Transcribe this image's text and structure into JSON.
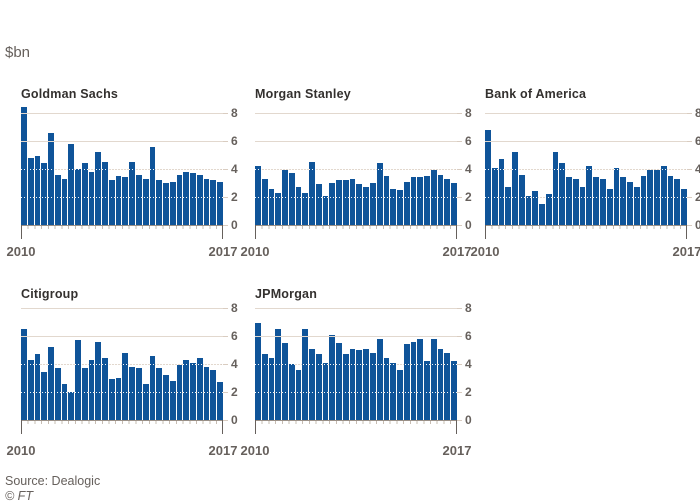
{
  "unit_label": "$bn",
  "source_label": "Source: Dealogic",
  "credit_label": "© FT",
  "colors": {
    "bar_blue": "#0F5499",
    "grid_line": "#E2D8CE",
    "baseline": "#9A9087",
    "text_gray": "#66605C",
    "title_dark": "#33302E",
    "background": "#FFFFFF"
  },
  "y_axis": {
    "ticks": [
      8,
      6,
      4,
      2,
      0
    ],
    "solid_levels": [
      8,
      6
    ],
    "dotted_levels": [
      4,
      2
    ]
  },
  "x_axis": {
    "start": "2010",
    "end": "2017",
    "interval": "quarterly"
  },
  "chart_data": [
    {
      "type": "bar",
      "title": "Goldman Sachs",
      "x_start": "2010",
      "x_end": "2017",
      "ylim": [
        0,
        8
      ],
      "values": [
        8.4,
        4.8,
        4.9,
        4.4,
        6.6,
        3.6,
        3.3,
        5.8,
        4.0,
        4.4,
        3.8,
        5.2,
        4.5,
        3.2,
        3.5,
        3.4,
        4.5,
        3.6,
        3.3,
        5.6,
        3.2,
        3.0,
        3.1,
        3.6,
        3.8,
        3.7,
        3.6,
        3.3,
        3.2,
        3.1
      ]
    },
    {
      "type": "bar",
      "title": "Morgan Stanley",
      "x_start": "2010",
      "x_end": "2017",
      "ylim": [
        0,
        8
      ],
      "values": [
        4.2,
        3.3,
        2.6,
        2.3,
        3.9,
        3.7,
        2.7,
        2.3,
        4.5,
        2.9,
        2.1,
        3.0,
        3.2,
        3.2,
        3.3,
        2.9,
        2.7,
        3.0,
        4.4,
        3.5,
        2.6,
        2.5,
        3.1,
        3.4,
        3.4,
        3.5,
        3.9,
        3.6,
        3.3,
        3.0
      ]
    },
    {
      "type": "bar",
      "title": "Bank of America",
      "x_start": "2010",
      "x_end": "2017",
      "ylim": [
        0,
        8
      ],
      "values": [
        6.8,
        4.1,
        4.7,
        2.7,
        5.2,
        3.6,
        2.1,
        2.4,
        1.5,
        2.2,
        5.2,
        4.4,
        3.4,
        3.3,
        2.7,
        4.2,
        3.4,
        3.3,
        2.6,
        4.1,
        3.4,
        3.1,
        2.7,
        3.5,
        3.9,
        3.9,
        4.2,
        3.5,
        3.3,
        2.6
      ]
    },
    {
      "type": "bar",
      "title": "Citigroup",
      "x_start": "2010",
      "x_end": "2017",
      "ylim": [
        0,
        8
      ],
      "values": [
        6.5,
        4.3,
        4.7,
        3.4,
        5.2,
        3.7,
        2.6,
        2.0,
        5.7,
        3.7,
        4.3,
        5.6,
        4.4,
        2.9,
        3.0,
        4.8,
        3.8,
        3.7,
        2.6,
        4.6,
        3.7,
        3.2,
        2.8,
        3.9,
        4.3,
        4.1,
        4.4,
        3.8,
        3.6,
        2.7
      ]
    },
    {
      "type": "bar",
      "title": "JPMorgan",
      "x_start": "2010",
      "x_end": "2017",
      "ylim": [
        0,
        8
      ],
      "values": [
        6.9,
        4.7,
        4.4,
        6.5,
        5.5,
        4.0,
        3.6,
        6.5,
        5.1,
        4.7,
        4.1,
        6.1,
        5.5,
        4.7,
        5.1,
        5.0,
        5.1,
        4.8,
        5.8,
        4.4,
        4.1,
        3.6,
        5.4,
        5.6,
        5.8,
        4.2,
        5.8,
        5.1,
        4.8,
        4.2
      ]
    }
  ]
}
